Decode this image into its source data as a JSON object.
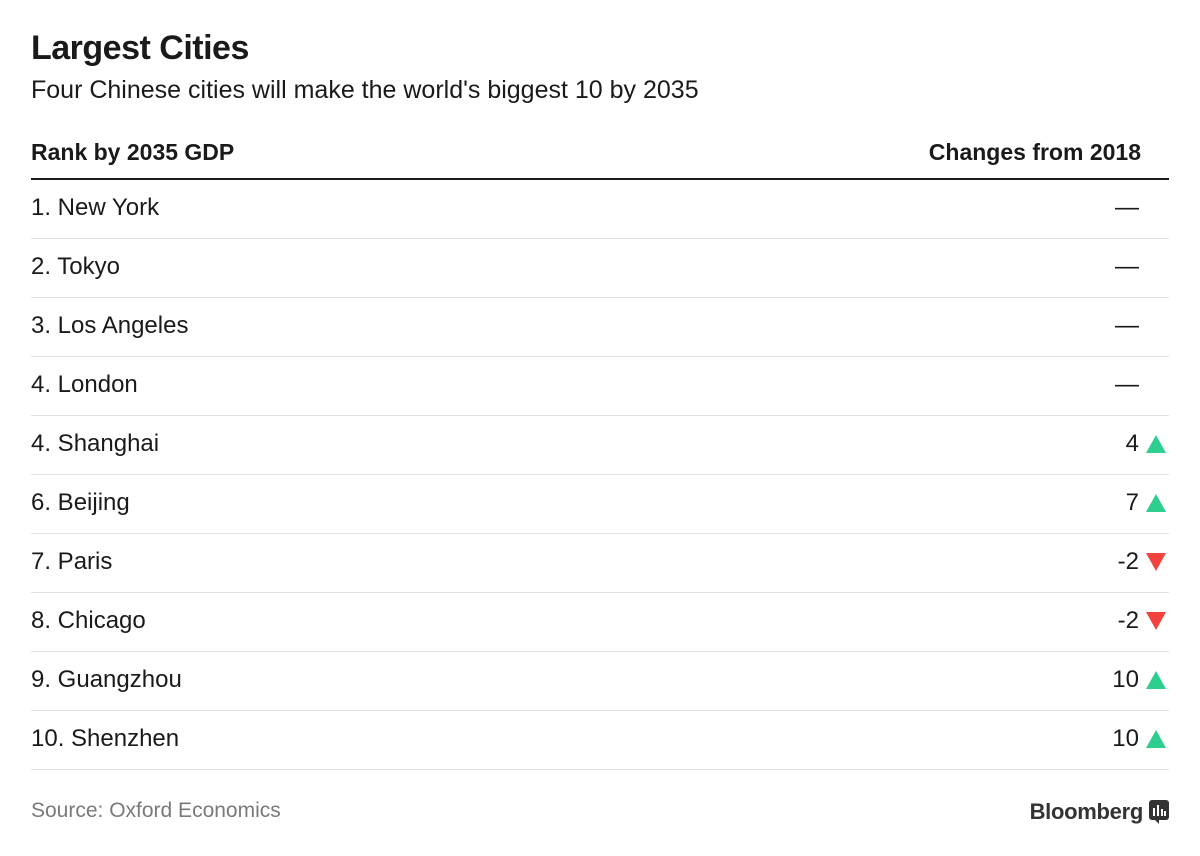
{
  "chart_data": {
    "type": "table",
    "title": "Largest Cities",
    "subtitle": "Four Chinese cities will make the world's biggest 10 by 2035",
    "columns": [
      "Rank by 2035 GDP",
      "Changes from 2018"
    ],
    "rows": [
      {
        "rank": 1,
        "city": "1. New York",
        "change": "—",
        "direction": "none"
      },
      {
        "rank": 2,
        "city": "2. Tokyo",
        "change": "—",
        "direction": "none"
      },
      {
        "rank": 3,
        "city": "3. Los Angeles",
        "change": "—",
        "direction": "none"
      },
      {
        "rank": 4,
        "city": "4. London",
        "change": "—",
        "direction": "none"
      },
      {
        "rank": 4,
        "city": "4. Shanghai",
        "change": "4",
        "direction": "up"
      },
      {
        "rank": 6,
        "city": "6. Beijing",
        "change": "7",
        "direction": "up"
      },
      {
        "rank": 7,
        "city": "7. Paris",
        "change": "-2",
        "direction": "down"
      },
      {
        "rank": 8,
        "city": "8. Chicago",
        "change": "-2",
        "direction": "down"
      },
      {
        "rank": 9,
        "city": "9. Guangzhou",
        "change": "10",
        "direction": "up"
      },
      {
        "rank": 10,
        "city": "10. Shenzhen",
        "change": "10",
        "direction": "up"
      }
    ],
    "colors": {
      "up": "#2ecf8e",
      "down": "#f2433f"
    }
  },
  "source": "Source: Oxford Economics",
  "brand": {
    "name": "Bloomberg",
    "icon": "bloomberg-chart-icon"
  }
}
